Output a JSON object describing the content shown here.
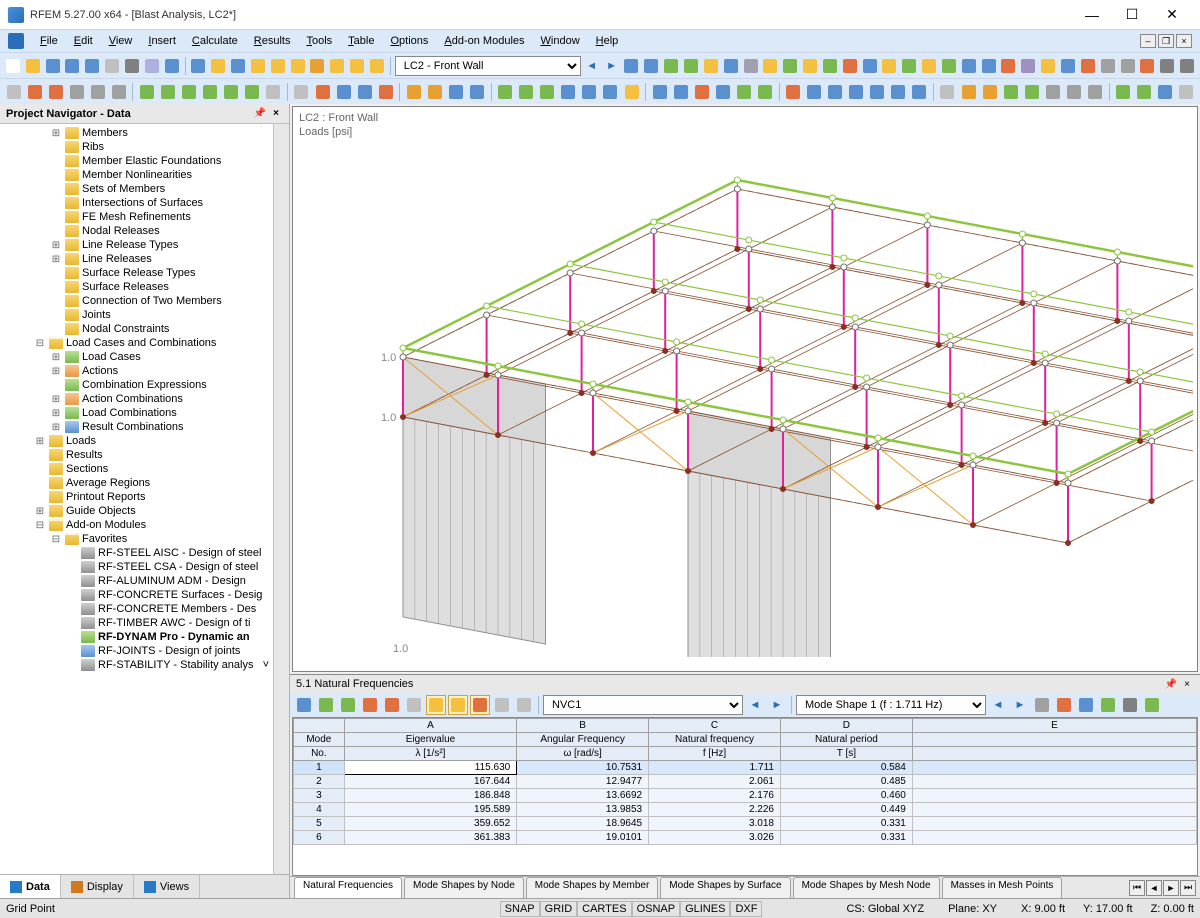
{
  "title": "RFEM 5.27.00 x64 - [Blast Analysis, LC2*]",
  "menus": [
    "File",
    "Edit",
    "View",
    "Insert",
    "Calculate",
    "Results",
    "Tools",
    "Table",
    "Options",
    "Add-on Modules",
    "Window",
    "Help"
  ],
  "lc_dropdown": "LC2 - Front Wall",
  "navigator": {
    "title": "Project Navigator - Data",
    "tabs": [
      {
        "label": "Data",
        "icon": "#2a78c8",
        "active": true
      },
      {
        "label": "Display",
        "icon": "#d07820",
        "active": false
      },
      {
        "label": "Views",
        "icon": "#2a78c8",
        "active": false
      }
    ],
    "tree": [
      {
        "d": 3,
        "exp": "+",
        "ico": "folder",
        "label": "Members"
      },
      {
        "d": 3,
        "exp": "",
        "ico": "folder",
        "label": "Ribs"
      },
      {
        "d": 3,
        "exp": "",
        "ico": "folder",
        "label": "Member Elastic Foundations"
      },
      {
        "d": 3,
        "exp": "",
        "ico": "folder",
        "label": "Member Nonlinearities"
      },
      {
        "d": 3,
        "exp": "",
        "ico": "folder",
        "label": "Sets of Members"
      },
      {
        "d": 3,
        "exp": "",
        "ico": "folder",
        "label": "Intersections of Surfaces"
      },
      {
        "d": 3,
        "exp": "",
        "ico": "folder",
        "label": "FE Mesh Refinements"
      },
      {
        "d": 3,
        "exp": "",
        "ico": "folder",
        "label": "Nodal Releases"
      },
      {
        "d": 3,
        "exp": "+",
        "ico": "folder",
        "label": "Line Release Types"
      },
      {
        "d": 3,
        "exp": "+",
        "ico": "folder",
        "label": "Line Releases"
      },
      {
        "d": 3,
        "exp": "",
        "ico": "folder",
        "label": "Surface Release Types"
      },
      {
        "d": 3,
        "exp": "",
        "ico": "folder",
        "label": "Surface Releases"
      },
      {
        "d": 3,
        "exp": "",
        "ico": "folder",
        "label": "Connection of Two Members"
      },
      {
        "d": 3,
        "exp": "",
        "ico": "folder",
        "label": "Joints"
      },
      {
        "d": 3,
        "exp": "",
        "ico": "folder",
        "label": "Nodal Constraints"
      },
      {
        "d": 2,
        "exp": "-",
        "ico": "folder-open",
        "label": "Load Cases and Combinations"
      },
      {
        "d": 3,
        "exp": "+",
        "ico": "item-g",
        "label": "Load Cases"
      },
      {
        "d": 3,
        "exp": "+",
        "ico": "item-o",
        "label": "Actions"
      },
      {
        "d": 3,
        "exp": "",
        "ico": "item-g",
        "label": "Combination Expressions"
      },
      {
        "d": 3,
        "exp": "+",
        "ico": "item-o",
        "label": "Action Combinations"
      },
      {
        "d": 3,
        "exp": "+",
        "ico": "item-g",
        "label": "Load Combinations"
      },
      {
        "d": 3,
        "exp": "+",
        "ico": "item-b",
        "label": "Result Combinations"
      },
      {
        "d": 2,
        "exp": "+",
        "ico": "folder",
        "label": "Loads"
      },
      {
        "d": 2,
        "exp": "",
        "ico": "folder",
        "label": "Results"
      },
      {
        "d": 2,
        "exp": "",
        "ico": "folder",
        "label": "Sections"
      },
      {
        "d": 2,
        "exp": "",
        "ico": "folder",
        "label": "Average Regions"
      },
      {
        "d": 2,
        "exp": "",
        "ico": "folder",
        "label": "Printout Reports"
      },
      {
        "d": 2,
        "exp": "+",
        "ico": "folder",
        "label": "Guide Objects"
      },
      {
        "d": 2,
        "exp": "-",
        "ico": "folder-open",
        "label": "Add-on Modules"
      },
      {
        "d": 3,
        "exp": "-",
        "ico": "folder-open",
        "label": "Favorites"
      },
      {
        "d": 4,
        "exp": "",
        "ico": "item-gr",
        "label": "RF-STEEL AISC - Design of steel"
      },
      {
        "d": 4,
        "exp": "",
        "ico": "item-gr",
        "label": "RF-STEEL CSA - Design of steel"
      },
      {
        "d": 4,
        "exp": "",
        "ico": "item-gr",
        "label": "RF-ALUMINUM ADM - Design"
      },
      {
        "d": 4,
        "exp": "",
        "ico": "item-gr",
        "label": "RF-CONCRETE Surfaces - Desig"
      },
      {
        "d": 4,
        "exp": "",
        "ico": "item-gr",
        "label": "RF-CONCRETE Members - Des"
      },
      {
        "d": 4,
        "exp": "",
        "ico": "item-gr",
        "label": "RF-TIMBER AWC - Design of ti"
      },
      {
        "d": 4,
        "exp": "",
        "ico": "item-g",
        "label": "RF-DYNAM Pro - Dynamic an",
        "bold": true
      },
      {
        "d": 4,
        "exp": "",
        "ico": "item-b",
        "label": "RF-JOINTS - Design of joints"
      },
      {
        "d": 4,
        "exp": "",
        "ico": "item-gr",
        "label": "RF-STABILITY - Stability analys"
      }
    ]
  },
  "viewport": {
    "line1": "LC2 : Front Wall",
    "line2": "Loads [psi]"
  },
  "results": {
    "title": "5.1 Natural Frequencies",
    "nvc": "NVC1",
    "mode_shape": "Mode Shape 1 (f : 1.711 Hz)",
    "columns": {
      "letters": [
        "A",
        "B",
        "C",
        "D",
        "E"
      ],
      "h1": [
        "Mode",
        "Eigenvalue",
        "Angular Frequency",
        "Natural frequency",
        "Natural period"
      ],
      "h2": [
        "No.",
        "λ [1/s²]",
        "ω [rad/s]",
        "f [Hz]",
        "T [s]"
      ]
    },
    "rows": [
      {
        "no": "1",
        "a": "115.630",
        "b": "10.7531",
        "c": "1.711",
        "d": "0.584",
        "sel": true
      },
      {
        "no": "2",
        "a": "167.644",
        "b": "12.9477",
        "c": "2.061",
        "d": "0.485"
      },
      {
        "no": "3",
        "a": "186.848",
        "b": "13.6692",
        "c": "2.176",
        "d": "0.460"
      },
      {
        "no": "4",
        "a": "195.589",
        "b": "13.9853",
        "c": "2.226",
        "d": "0.449"
      },
      {
        "no": "5",
        "a": "359.652",
        "b": "18.9645",
        "c": "3.018",
        "d": "0.331"
      },
      {
        "no": "6",
        "a": "361.383",
        "b": "19.0101",
        "c": "3.026",
        "d": "0.331"
      }
    ],
    "tabs": [
      "Natural Frequencies",
      "Mode Shapes by Node",
      "Mode Shapes by Member",
      "Mode Shapes by Surface",
      "Mode Shapes by Mesh Node",
      "Masses in Mesh Points"
    ]
  },
  "statusbar": {
    "left": "Grid Point",
    "cells": [
      "SNAP",
      "GRID",
      "CARTES",
      "OSNAP",
      "GLINES",
      "DXF"
    ],
    "cs": "CS: Global XYZ",
    "plane": "Plane: XY",
    "x": "X:   9.00 ft",
    "y": "Y:   17.00 ft",
    "z": "Z:   0.00 ft"
  },
  "toolbar_colors": {
    "row1": [
      "#fff",
      "#f5c040",
      "#5a90d0",
      "#5a90d0",
      "#5a90d0",
      "#c0c0c0",
      "#808080",
      "#b0b0e0",
      "#5a90d0",
      "#5a90d0",
      "#f5c040",
      "#5a90d0",
      "#f5c040",
      "#f5c040",
      "#f5c040",
      "#e8a030",
      "#f5c040",
      "#f5c040",
      "#f5c040"
    ],
    "row1b": [
      "#5a90d0",
      "#5a90d0",
      "#7ab850",
      "#7ab850",
      "#f5c040",
      "#5a90d0",
      "#a0a0b0",
      "#f5c040",
      "#7ab850",
      "#f5c040",
      "#7ab850",
      "#e07040",
      "#5a90d0",
      "#f5c040",
      "#7ab850",
      "#f5c040",
      "#7ab850",
      "#5a90d0",
      "#5a90d0",
      "#e07040",
      "#a090c0",
      "#f5c040",
      "#5a90d0",
      "#e07040",
      "#a0a0a0",
      "#a0a0a0",
      "#e07040",
      "#808080",
      "#808080"
    ],
    "row2": [
      "#c0c0c0",
      "#e07040",
      "#e07040",
      "#a0a0a0",
      "#a0a0a0",
      "#a0a0a0",
      "#7ab850",
      "#7ab850",
      "#7ab850",
      "#7ab850",
      "#7ab850",
      "#7ab850",
      "#c0c0c0",
      "#c0c0c0",
      "#e07040",
      "#5a90d0",
      "#5a90d0",
      "#e07040",
      "#e8a030",
      "#e8a030",
      "#5a90d0",
      "#5a90d0",
      "#7ab850",
      "#7ab850",
      "#7ab850",
      "#5a90d0",
      "#5a90d0",
      "#5a90d0",
      "#f5c040",
      "#5a90d0",
      "#5a90d0",
      "#e07040",
      "#5a90d0",
      "#7ab850",
      "#7ab850",
      "#e07040",
      "#5a90d0",
      "#5a90d0",
      "#5a90d0",
      "#5a90d0",
      "#5a90d0",
      "#5a90d0",
      "#c0c0c0",
      "#e8a030",
      "#e8a030",
      "#7ab850",
      "#7ab850",
      "#a0a0a0",
      "#a0a0a0",
      "#a0a0a0",
      "#7ab850",
      "#7ab850",
      "#5a90d0",
      "#c0c0c0"
    ]
  },
  "model": {
    "colors": {
      "roof_outline": "#8cc63f",
      "columns": "#e020a0",
      "edges": "#8a5030",
      "braces": "#e8a030",
      "wall": "#d0d0d0",
      "wall_stroke": "#909090",
      "dash": "#a0a0a0",
      "node_fill": "#ffffff",
      "node_stroke": "#707070",
      "inner_node": "#8a3020"
    },
    "label": "1.0"
  }
}
